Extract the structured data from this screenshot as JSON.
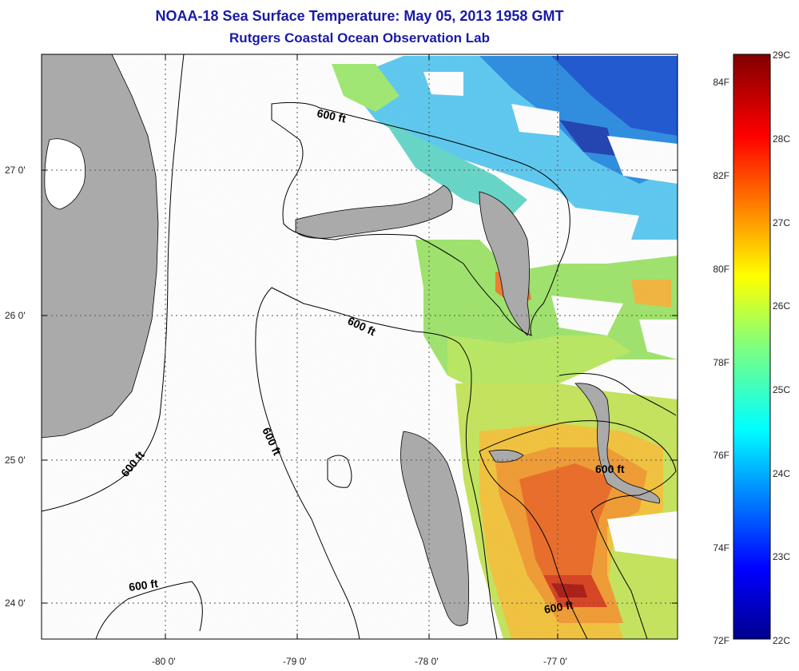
{
  "header": {
    "title": "NOAA-18 Sea Surface Temperature:  May 05, 2013 1958 GMT",
    "subtitle": "Rutgers Coastal Ocean Observation Lab"
  },
  "map": {
    "lon_ticks": [
      "-80 0'",
      "-79 0'",
      "-78 0'",
      "-77 0'"
    ],
    "lat_ticks": [
      "27 0'",
      "26 0'",
      "25 0'",
      "24 0'"
    ],
    "contour_labels": [
      "600 ft",
      "600 ft",
      "600 ft",
      "600 ft",
      "600 ft",
      "600 ft"
    ],
    "colors": {
      "land": "#aaaaaa",
      "cloud": "#ffffff",
      "grid": "#555555"
    }
  },
  "colorbar": {
    "celsius": [
      "29C",
      "28C",
      "27C",
      "26C",
      "25C",
      "24C",
      "23C",
      "22C"
    ],
    "fahrenheit": [
      "84F",
      "82F",
      "80F",
      "78F",
      "76F",
      "74F",
      "72F"
    ]
  }
}
